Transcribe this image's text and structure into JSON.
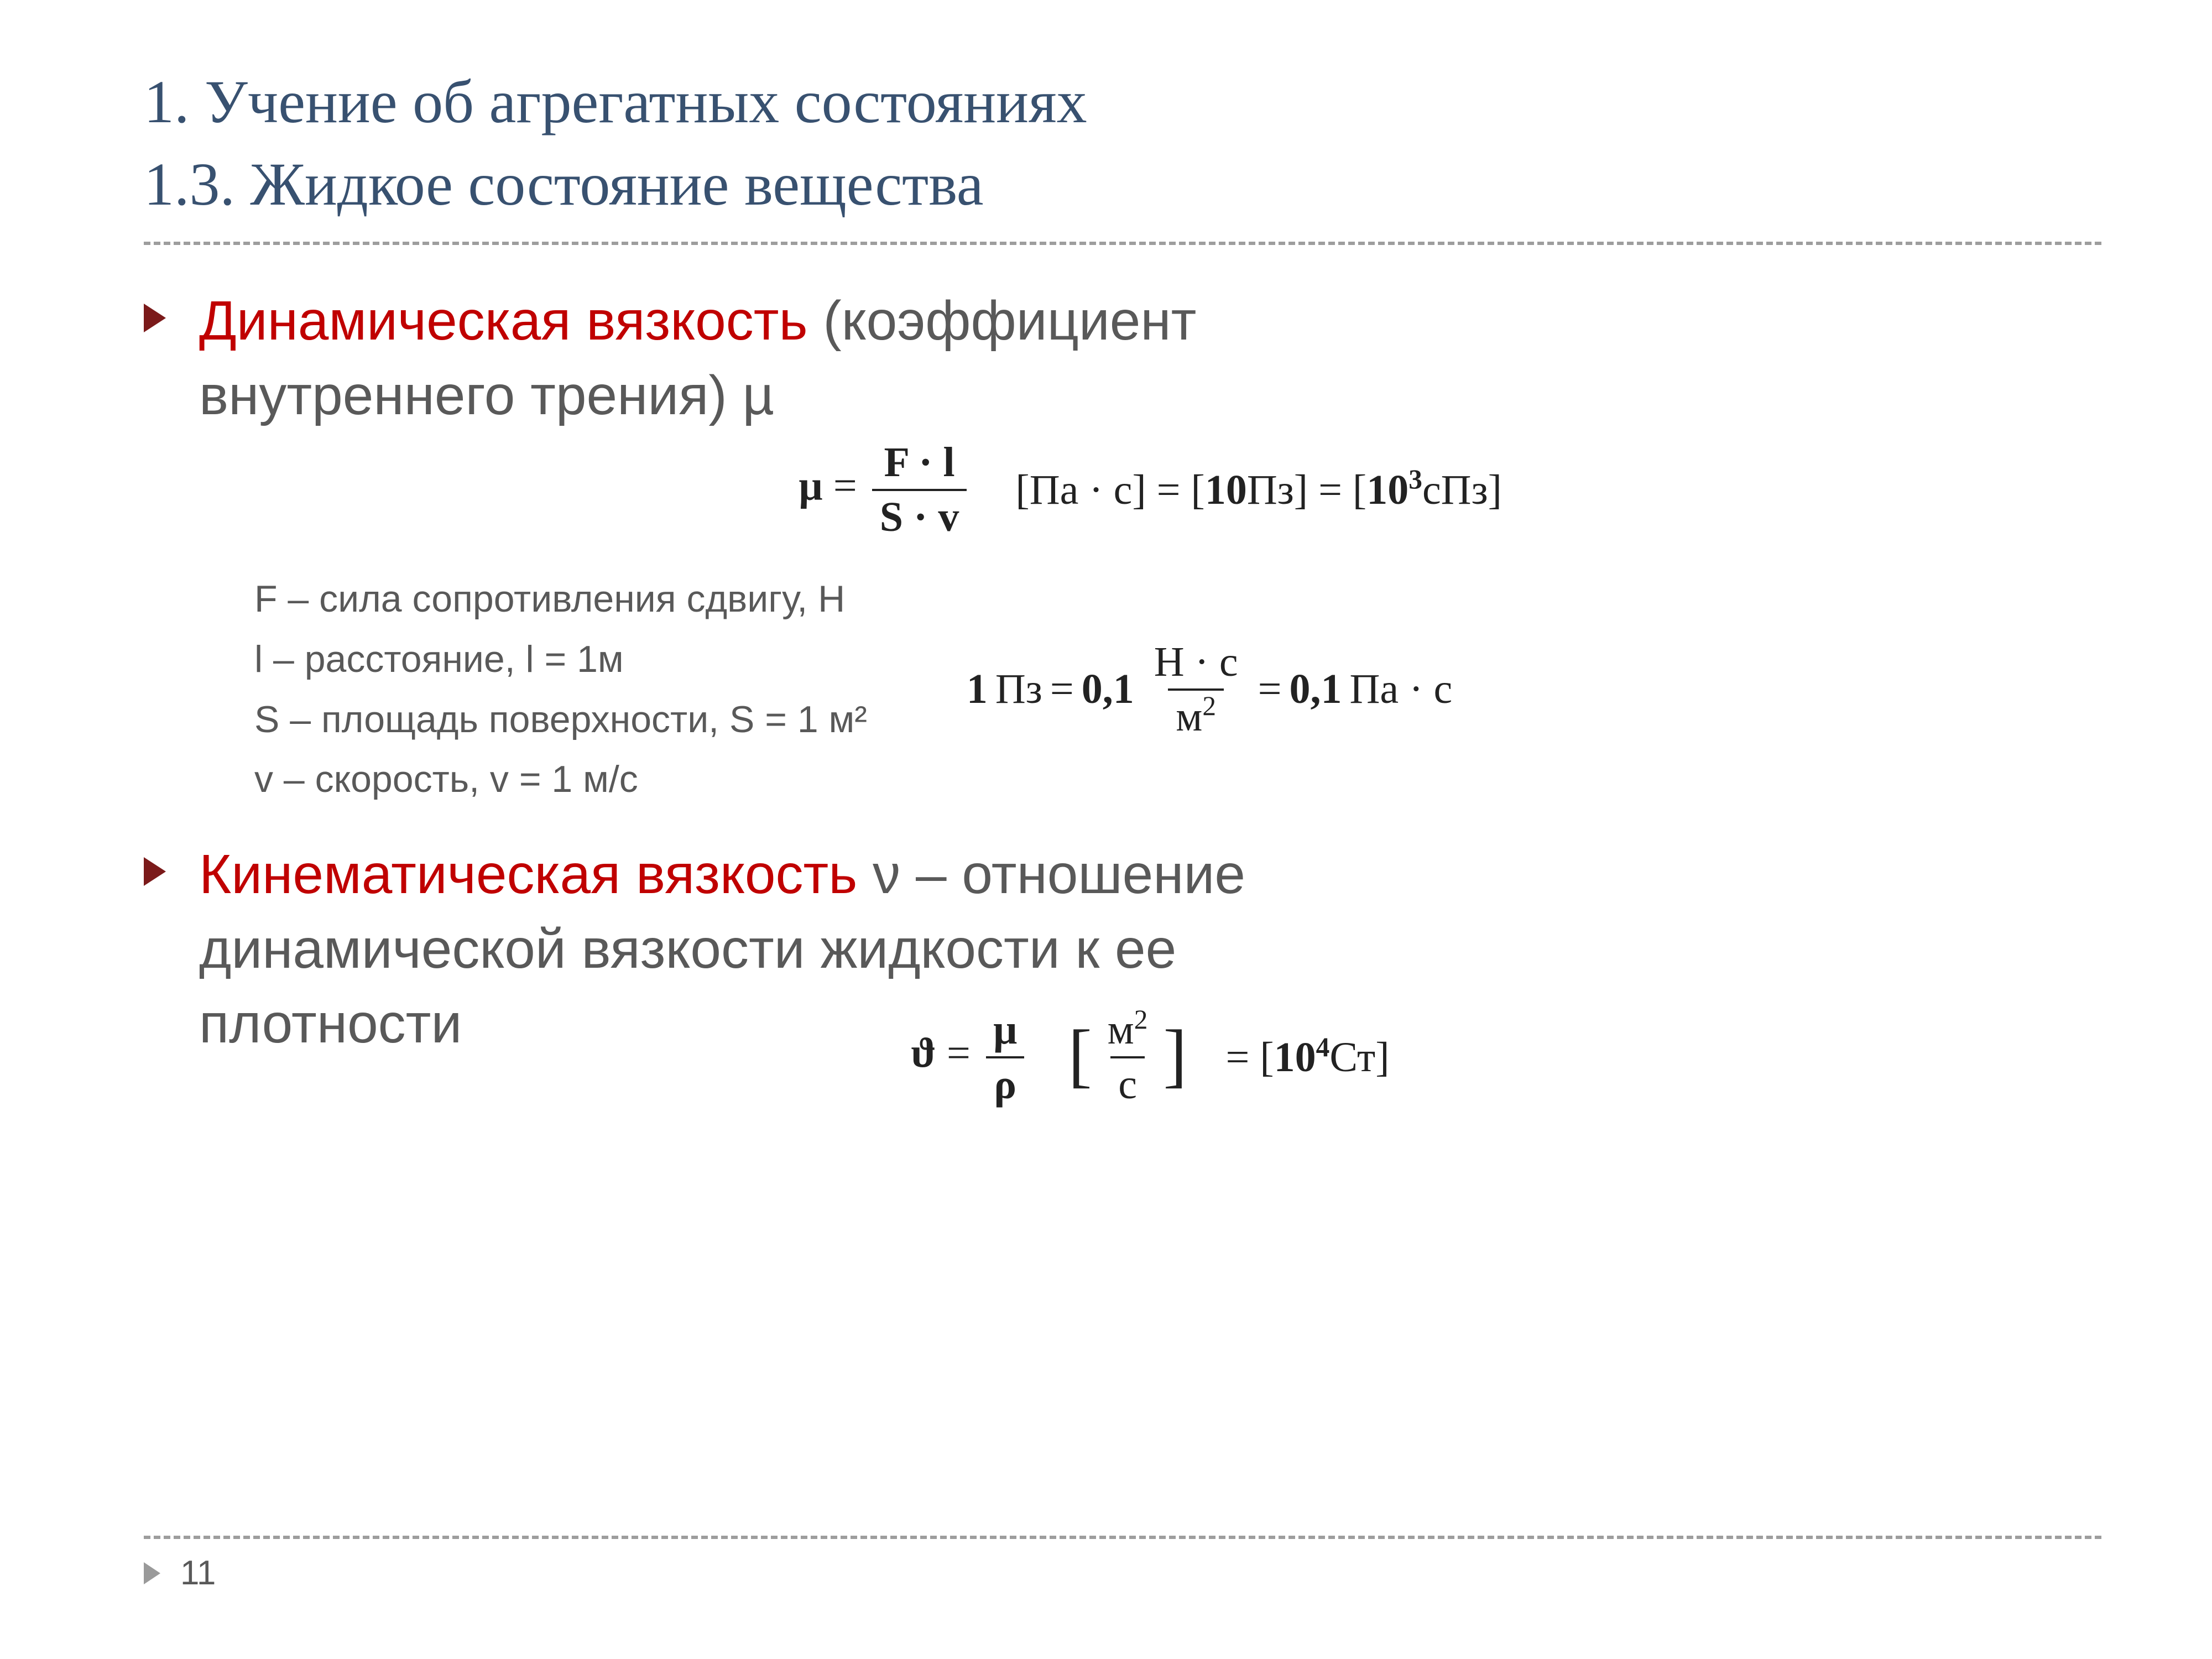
{
  "colors": {
    "background": "#ffffff",
    "heading_accent": "#385170",
    "body_text": "#595959",
    "term_red": "#c00000",
    "bullet_marker": "#7b1a1a",
    "formula_text": "#222222",
    "dashed_rule": "#9d9d9d",
    "footer_marker": "#9a9a9a"
  },
  "typography": {
    "heading_font": "Georgia / Times New Roman serif",
    "heading_size_pt": 34,
    "body_font": "Segoe UI / Verdana sans-serif",
    "body_size_pt": 30,
    "defs_size_pt": 20,
    "formula_font": "Cambria Math serif",
    "formula_size_pt": 23,
    "footer_size_pt": 18
  },
  "heading": {
    "line1": "1. Учение об агрегатных состояниях",
    "line2": "1.3. Жидкое состояние вещества"
  },
  "bullets": {
    "b1": {
      "term": "Динамическая вязкость",
      "rest_line1": " (коэффициент",
      "rest_line2": "внутреннего трения) µ"
    },
    "b2": {
      "term": "Кинематическая вязкость",
      "rest_line1": " ν – отношение",
      "rest_line2": "динамической вязкости жидкости к ее",
      "rest_line3": "плотности"
    }
  },
  "formula1": {
    "lhs_symbol": "µ",
    "numerator": "F · l",
    "denominator": "S · v",
    "units_chain": {
      "u1": "Па · с",
      "u2_coef": "10",
      "u2_unit": "Пз",
      "u3_coef_base": "10",
      "u3_coef_exp": "3",
      "u3_unit": "сПз"
    }
  },
  "defs": {
    "d1": "F – сила сопротивления сдвигу, Н",
    "d2": "l – расстояние, l = 1м",
    "d3": "S – площадь поверхности, S = 1 м²",
    "d4": "v – скорость, v = 1 м/с"
  },
  "side_formula": {
    "lhs_coef": "1",
    "lhs_unit": "Пз",
    "mid_coef": "0,1",
    "mid_num": "Н · с",
    "mid_den_base": "м",
    "mid_den_exp": "2",
    "rhs_coef": "0,1",
    "rhs_unit": "Па · с"
  },
  "formula2": {
    "lhs_symbol": "ϑ",
    "numerator": "µ",
    "denominator": "ρ",
    "unit_num_base": "м",
    "unit_num_exp": "2",
    "unit_den": "с",
    "rhs_coef_base": "10",
    "rhs_coef_exp": "4",
    "rhs_unit": "Ст"
  },
  "footer": {
    "page_number": "11"
  }
}
